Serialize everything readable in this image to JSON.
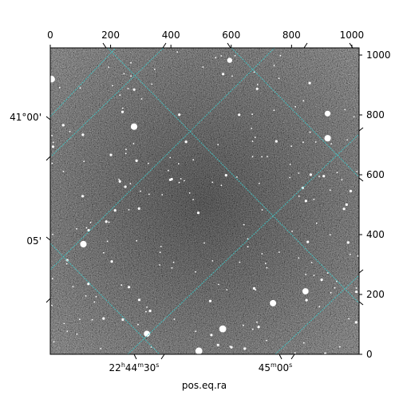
{
  "chart_data": {
    "type": "heatmap",
    "title": "",
    "xlabel": "pos.eq.ra",
    "ylabel": "",
    "pixel_axes": {
      "x_range": [
        0,
        1024
      ],
      "y_range": [
        0,
        1024
      ],
      "x_ticks": [
        "0",
        "200",
        "400",
        "600",
        "800",
        "1000"
      ],
      "y_ticks": [
        "0",
        "200",
        "400",
        "600",
        "800",
        "1000"
      ],
      "x_position": "top",
      "y_position": "right"
    },
    "world_axes": {
      "ra_ticks": [
        {
          "main": "22",
          "unit1": "h",
          "mid": "44",
          "unit2": "m",
          "sec": "30",
          "unit3": "s"
        },
        {
          "main": "",
          "unit1": "",
          "mid": "45",
          "unit2": "m",
          "sec": "00",
          "unit3": "s"
        }
      ],
      "dec_ticks": [
        "41°00'",
        "05'"
      ],
      "ra_position": "bottom",
      "dec_position": "left"
    },
    "grid": true,
    "grid_color": "#3fc8c8",
    "colormap": "gray",
    "image_description_colors": {
      "background": "#5a5a5a",
      "stars": "#ffffff"
    }
  }
}
